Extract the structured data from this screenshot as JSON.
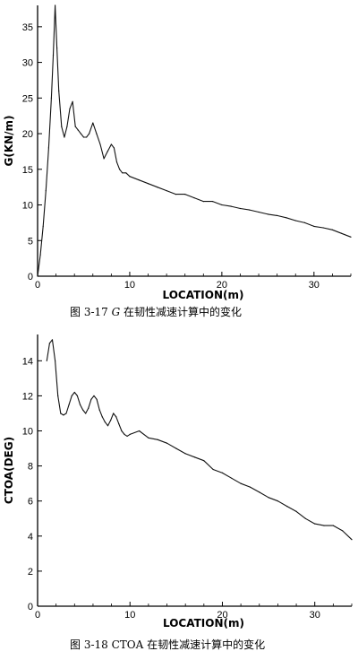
{
  "chart_data": [
    {
      "type": "line",
      "title": "",
      "caption_prefix": "图 3-17",
      "caption_var": "G",
      "caption_rest": " 在韧性减速计算中的变化",
      "xlabel": "LOCATION(m)",
      "ylabel": "G(KN/m)",
      "xlim": [
        0,
        34
      ],
      "ylim": [
        0,
        38
      ],
      "xticks": [
        0,
        10,
        20,
        30
      ],
      "yticks": [
        0,
        5,
        10,
        15,
        20,
        25,
        30,
        35
      ],
      "grid": false,
      "series": [
        {
          "x": [
            0,
            0.3,
            0.6,
            0.9,
            1.2,
            1.5,
            1.7,
            1.9,
            2.1,
            2.3,
            2.6,
            2.9,
            3.2,
            3.5,
            3.8,
            4.1,
            4.4,
            4.7,
            5.0,
            5.3,
            5.6,
            6.0,
            6.4,
            6.8,
            7.2,
            7.6,
            8.0,
            8.3,
            8.6,
            8.9,
            9.2,
            9.6,
            10.0,
            11,
            12,
            13,
            14,
            15,
            16,
            17,
            18,
            19,
            20,
            21,
            22,
            23,
            24,
            25,
            26,
            27,
            28,
            29,
            30,
            31,
            32,
            33,
            34
          ],
          "y": [
            0,
            3,
            7,
            12,
            18,
            25,
            31,
            38,
            32,
            26,
            21,
            19.5,
            21,
            23.5,
            24.5,
            21,
            20.5,
            20,
            19.5,
            19.5,
            20,
            21.5,
            20,
            18.5,
            16.5,
            17.5,
            18.5,
            18,
            16,
            15,
            14.5,
            14.5,
            14,
            13.5,
            13,
            12.5,
            12,
            11.5,
            11.5,
            11,
            10.5,
            10.5,
            10,
            9.8,
            9.5,
            9.3,
            9,
            8.7,
            8.5,
            8.2,
            7.8,
            7.5,
            7,
            6.8,
            6.5,
            6,
            5.5
          ]
        }
      ]
    },
    {
      "type": "line",
      "title": "",
      "caption_prefix": "图 3-18",
      "caption_var": "CTOA",
      "caption_rest": " 在韧性减速计算中的变化",
      "xlabel": "LOCATION(m)",
      "ylabel": "CTOA(DEG)",
      "xlim": [
        0,
        34
      ],
      "ylim": [
        0,
        15.5
      ],
      "xticks": [
        0,
        10,
        20,
        30
      ],
      "yticks": [
        0,
        2,
        4,
        6,
        8,
        10,
        12,
        14
      ],
      "grid": false,
      "series": [
        {
          "x": [
            1.0,
            1.3,
            1.6,
            1.9,
            2.2,
            2.5,
            2.8,
            3.1,
            3.4,
            3.7,
            4.0,
            4.3,
            4.6,
            4.9,
            5.2,
            5.5,
            5.8,
            6.1,
            6.4,
            6.7,
            7.0,
            7.3,
            7.6,
            7.9,
            8.2,
            8.5,
            8.8,
            9.1,
            9.4,
            9.7,
            10,
            11,
            12,
            13,
            14,
            15,
            16,
            17,
            18,
            19,
            20,
            21,
            22,
            23,
            24,
            25,
            26,
            27,
            28,
            29,
            30,
            31,
            32,
            33,
            34
          ],
          "y": [
            14.0,
            15.0,
            15.2,
            14.0,
            12.0,
            11.0,
            10.9,
            11.0,
            11.5,
            12.0,
            12.2,
            12.0,
            11.5,
            11.2,
            11.0,
            11.3,
            11.8,
            12.0,
            11.8,
            11.2,
            10.8,
            10.5,
            10.3,
            10.6,
            11.0,
            10.8,
            10.4,
            10.0,
            9.8,
            9.7,
            9.8,
            10.0,
            9.6,
            9.5,
            9.3,
            9.0,
            8.7,
            8.5,
            8.3,
            7.8,
            7.6,
            7.3,
            7.0,
            6.8,
            6.5,
            6.2,
            6.0,
            5.7,
            5.4,
            5.0,
            4.7,
            4.6,
            4.6,
            4.3,
            3.8
          ]
        }
      ]
    }
  ]
}
